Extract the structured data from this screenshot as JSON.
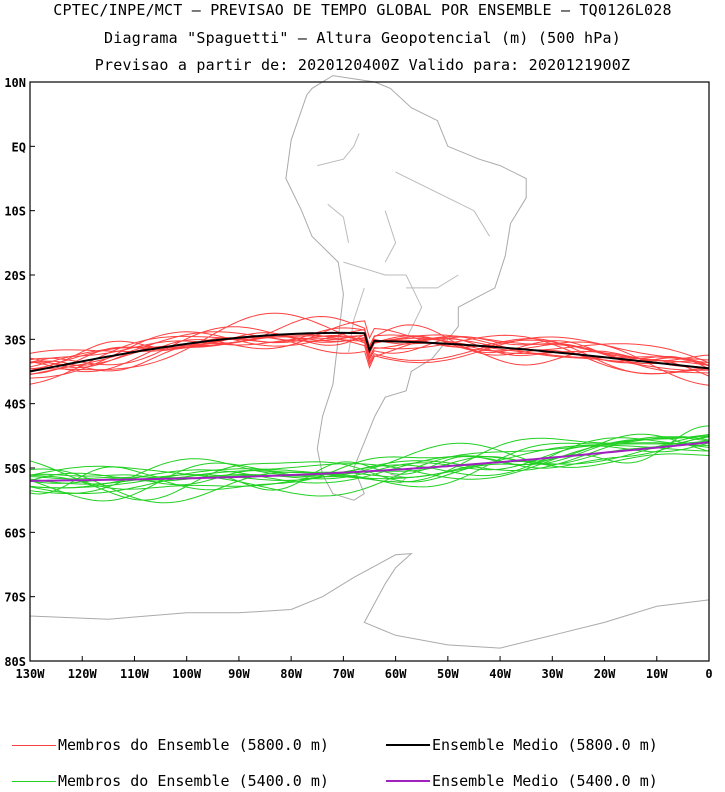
{
  "titles": {
    "line1": "CPTEC/INPE/MCT – PREVISAO DE TEMPO GLOBAL POR ENSEMBLE – TQ0126L028",
    "line2": "Diagrama \"Spaguetti\" – Altura Geopotencial (m) (500 hPa)",
    "line3": "Previsao a partir de: 2020120400Z  Valido para: 2020121900Z"
  },
  "axes": {
    "lat_labels": [
      "10N",
      "EQ",
      "10S",
      "20S",
      "30S",
      "40S",
      "50S",
      "60S",
      "70S",
      "80S"
    ],
    "lon_labels": [
      "130W",
      "120W",
      "110W",
      "100W",
      "90W",
      "80W",
      "70W",
      "60W",
      "50W",
      "40W",
      "30W",
      "20W",
      "10W",
      "0"
    ]
  },
  "legend": [
    {
      "label": "Membros do Ensemble (5800.0 m)",
      "color": "#ff4040",
      "style": "thin"
    },
    {
      "label": "Ensemble Medio (5800.0 m)",
      "color": "#000000",
      "style": "thick"
    },
    {
      "label": "Membros do Ensemble (5400.0 m)",
      "color": "#22d022",
      "style": "thin"
    },
    {
      "label": "Ensemble Medio (5400.0 m)",
      "color": "#a020c0",
      "style": "thick"
    }
  ],
  "colors": {
    "member_5800": "#ff4040",
    "mean_5800": "#000000",
    "member_5400": "#22d022",
    "mean_5400": "#a020c0",
    "coast": "#aaaaaa"
  }
}
